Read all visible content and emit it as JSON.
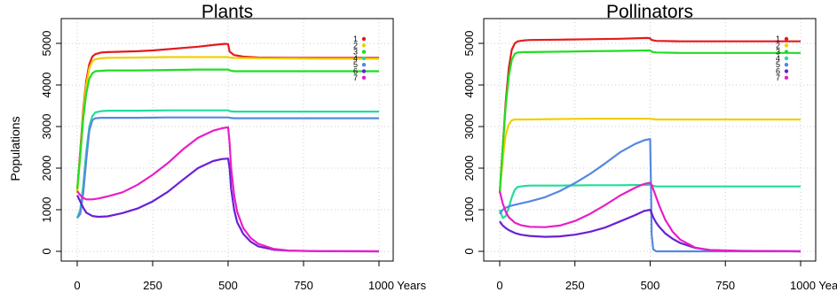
{
  "figure": {
    "ylabel": "Populations",
    "x_unit_label": "Years"
  },
  "chart_data": [
    {
      "type": "line",
      "title": "Plants",
      "xlabel": "",
      "ylabel": "Populations",
      "xlim": [
        0,
        1000
      ],
      "ylim": [
        0,
        5000
      ],
      "xticks": [
        0,
        250,
        500,
        750,
        1000
      ],
      "xtick_labels": [
        "0",
        "250",
        "500",
        "750",
        "1000 Years"
      ],
      "yticks": [
        0,
        1000,
        2000,
        3000,
        4000,
        5000
      ],
      "ytick_labels": [
        "0",
        "1000",
        "2000",
        "3000",
        "4000",
        "5000"
      ],
      "grid": true,
      "legend_position": "top-right",
      "series": [
        {
          "name": "1",
          "color": "#e41a1c",
          "x": [
            0,
            10,
            20,
            30,
            40,
            50,
            60,
            80,
            100,
            150,
            200,
            250,
            300,
            350,
            400,
            450,
            490,
            500,
            505,
            520,
            550,
            600,
            700,
            800,
            900,
            1000
          ],
          "y": [
            1450,
            2400,
            3400,
            4100,
            4500,
            4680,
            4740,
            4780,
            4790,
            4800,
            4810,
            4830,
            4860,
            4890,
            4920,
            4960,
            4990,
            4980,
            4800,
            4720,
            4680,
            4660,
            4650,
            4650,
            4650,
            4650
          ]
        },
        {
          "name": "2",
          "color": "#f0d000",
          "x": [
            0,
            10,
            20,
            30,
            40,
            50,
            60,
            80,
            100,
            200,
            300,
            400,
            500,
            505,
            520,
            600,
            800,
            1000
          ],
          "y": [
            1400,
            2300,
            3300,
            4000,
            4400,
            4570,
            4620,
            4640,
            4650,
            4660,
            4670,
            4670,
            4670,
            4660,
            4650,
            4640,
            4630,
            4630
          ]
        },
        {
          "name": "3",
          "color": "#22dd22",
          "x": [
            0,
            10,
            20,
            30,
            40,
            50,
            60,
            80,
            100,
            200,
            300,
            400,
            500,
            505,
            520,
            600,
            800,
            1000
          ],
          "y": [
            1500,
            2300,
            3200,
            3800,
            4150,
            4280,
            4330,
            4340,
            4350,
            4350,
            4360,
            4370,
            4370,
            4350,
            4330,
            4330,
            4330,
            4330
          ]
        },
        {
          "name": "4",
          "color": "#22dd99",
          "x": [
            0,
            10,
            20,
            30,
            40,
            50,
            60,
            80,
            100,
            200,
            300,
            400,
            500,
            505,
            520,
            600,
            800,
            1000
          ],
          "y": [
            800,
            1000,
            1600,
            2400,
            3000,
            3250,
            3340,
            3370,
            3380,
            3380,
            3390,
            3390,
            3390,
            3370,
            3360,
            3360,
            3360,
            3360
          ]
        },
        {
          "name": "5",
          "color": "#5588e0",
          "x": [
            0,
            10,
            20,
            30,
            40,
            50,
            60,
            80,
            100,
            200,
            300,
            400,
            500,
            505,
            520,
            600,
            800,
            1000
          ],
          "y": [
            800,
            900,
            1400,
            2200,
            2900,
            3150,
            3200,
            3210,
            3210,
            3210,
            3220,
            3220,
            3220,
            3210,
            3200,
            3200,
            3200,
            3200
          ]
        },
        {
          "name": "6",
          "color": "#6a1fd6",
          "x": [
            0,
            10,
            20,
            30,
            50,
            70,
            100,
            150,
            200,
            250,
            300,
            350,
            400,
            450,
            480,
            500,
            505,
            510,
            520,
            530,
            550,
            575,
            600,
            650,
            700,
            800,
            1000
          ],
          "y": [
            1350,
            1200,
            1050,
            930,
            850,
            830,
            840,
            920,
            1030,
            1200,
            1430,
            1720,
            2000,
            2170,
            2220,
            2230,
            2000,
            1500,
            1000,
            700,
            420,
            230,
            120,
            40,
            15,
            5,
            0
          ]
        },
        {
          "name": "7",
          "color": "#e81ec8",
          "x": [
            0,
            10,
            20,
            30,
            50,
            70,
            100,
            150,
            200,
            250,
            300,
            350,
            400,
            450,
            480,
            500,
            505,
            510,
            520,
            530,
            550,
            575,
            600,
            650,
            700,
            800,
            1000
          ],
          "y": [
            1450,
            1350,
            1280,
            1250,
            1250,
            1270,
            1320,
            1420,
            1600,
            1840,
            2120,
            2450,
            2730,
            2900,
            2960,
            2980,
            2600,
            2000,
            1350,
            950,
            560,
            320,
            180,
            60,
            20,
            5,
            0
          ]
        }
      ]
    },
    {
      "type": "line",
      "title": "Pollinators",
      "xlabel": "",
      "ylabel": "",
      "xlim": [
        0,
        1000
      ],
      "ylim": [
        0,
        5000
      ],
      "xticks": [
        0,
        250,
        500,
        750,
        1000
      ],
      "xtick_labels": [
        "0",
        "250",
        "500",
        "750",
        "1000 Years"
      ],
      "yticks": [
        0,
        1000,
        2000,
        3000,
        4000,
        5000
      ],
      "ytick_labels": [
        "0",
        "1000",
        "2000",
        "3000",
        "4000",
        "5000"
      ],
      "grid": true,
      "legend_position": "top-right",
      "series": [
        {
          "name": "1",
          "color": "#e41a1c",
          "x": [
            0,
            10,
            20,
            30,
            40,
            50,
            60,
            80,
            100,
            200,
            300,
            400,
            490,
            500,
            505,
            520,
            600,
            800,
            1000
          ],
          "y": [
            1400,
            2500,
            3600,
            4400,
            4850,
            5000,
            5050,
            5070,
            5080,
            5090,
            5100,
            5110,
            5130,
            5120,
            5080,
            5060,
            5050,
            5050,
            5050
          ]
        },
        {
          "name": "2",
          "color": "#f0d000",
          "x": [
            0,
            10,
            20,
            30,
            40,
            50,
            60,
            80,
            100,
            200,
            300,
            400,
            500,
            505,
            520,
            600,
            800,
            1000
          ],
          "y": [
            1400,
            2200,
            2800,
            3050,
            3150,
            3170,
            3170,
            3170,
            3170,
            3180,
            3190,
            3190,
            3190,
            3180,
            3170,
            3170,
            3170,
            3170
          ]
        },
        {
          "name": "3",
          "color": "#22dd22",
          "x": [
            0,
            10,
            20,
            30,
            40,
            50,
            60,
            80,
            100,
            200,
            300,
            400,
            500,
            505,
            520,
            600,
            800,
            1000
          ],
          "y": [
            1400,
            2500,
            3500,
            4200,
            4600,
            4750,
            4780,
            4790,
            4790,
            4800,
            4810,
            4820,
            4830,
            4800,
            4780,
            4770,
            4770,
            4770
          ]
        },
        {
          "name": "4",
          "color": "#22dd99",
          "x": [
            0,
            10,
            20,
            30,
            40,
            50,
            60,
            80,
            100,
            200,
            300,
            400,
            500,
            505,
            520,
            600,
            800,
            1000
          ],
          "y": [
            1000,
            800,
            850,
            1050,
            1300,
            1480,
            1550,
            1570,
            1580,
            1580,
            1590,
            1590,
            1600,
            1580,
            1560,
            1560,
            1560,
            1560
          ]
        },
        {
          "name": "5",
          "color": "#5588e0",
          "x": [
            0,
            10,
            20,
            30,
            50,
            100,
            150,
            200,
            250,
            300,
            350,
            400,
            450,
            480,
            500,
            503,
            505,
            510,
            520,
            600,
            1000
          ],
          "y": [
            900,
            1000,
            1050,
            1080,
            1120,
            1200,
            1300,
            1450,
            1640,
            1860,
            2110,
            2380,
            2580,
            2670,
            2700,
            1500,
            400,
            50,
            0,
            0,
            0
          ]
        },
        {
          "name": "6",
          "color": "#6a1fd6",
          "x": [
            0,
            10,
            20,
            30,
            50,
            70,
            100,
            150,
            200,
            250,
            300,
            350,
            400,
            450,
            480,
            500,
            505,
            510,
            520,
            530,
            550,
            575,
            600,
            650,
            700,
            800,
            1000
          ],
          "y": [
            720,
            620,
            560,
            510,
            440,
            400,
            370,
            350,
            360,
            400,
            470,
            570,
            720,
            870,
            970,
            1000,
            920,
            820,
            690,
            590,
            430,
            300,
            200,
            80,
            30,
            10,
            0
          ]
        },
        {
          "name": "7",
          "color": "#e81ec8",
          "x": [
            0,
            10,
            20,
            30,
            50,
            70,
            100,
            150,
            200,
            250,
            300,
            350,
            400,
            450,
            480,
            500,
            505,
            510,
            520,
            530,
            550,
            575,
            600,
            650,
            700,
            800,
            1000
          ],
          "y": [
            1450,
            1150,
            950,
            820,
            690,
            630,
            590,
            580,
            620,
            730,
            900,
            1110,
            1340,
            1530,
            1620,
            1650,
            1600,
            1500,
            1300,
            1100,
            760,
            470,
            280,
            90,
            30,
            8,
            0
          ]
        }
      ]
    }
  ]
}
